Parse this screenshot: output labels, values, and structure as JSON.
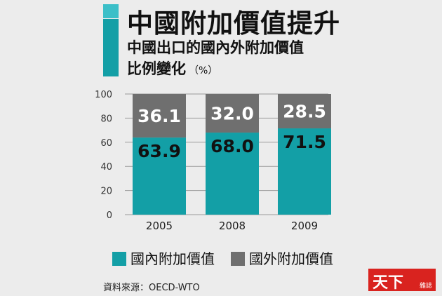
{
  "header": {
    "title": "中國附加價值提升",
    "subtitle_line1": "中國出口的國內外附加價值",
    "subtitle_line2": "比例變化",
    "unit": "（%）"
  },
  "legend": [
    {
      "label": "國內附加價值",
      "color": "#139fa6"
    },
    {
      "label": "國外附加價值",
      "color": "#6f6f6f"
    }
  ],
  "source": "資料來源：OECD-WTO",
  "logo": {
    "main": "天下",
    "sub": "雜誌"
  },
  "chart_data": {
    "type": "bar",
    "stacked": true,
    "categories": [
      "2005",
      "2008",
      "2009"
    ],
    "series": [
      {
        "name": "國內附加價值",
        "values": [
          63.9,
          68.0,
          71.5
        ],
        "color": "#139fa6"
      },
      {
        "name": "國外附加價值",
        "values": [
          36.1,
          32.0,
          28.5
        ],
        "color": "#6f6f6f"
      }
    ],
    "data_labels": [
      [
        "63.9",
        "68.0",
        "71.5"
      ],
      [
        "36.1",
        "32.0",
        "28.5"
      ]
    ],
    "yticks": [
      "0",
      "20",
      "40",
      "60",
      "80",
      "100"
    ],
    "ylim": [
      0,
      100
    ],
    "grid": true,
    "legend_position": "bottom"
  }
}
